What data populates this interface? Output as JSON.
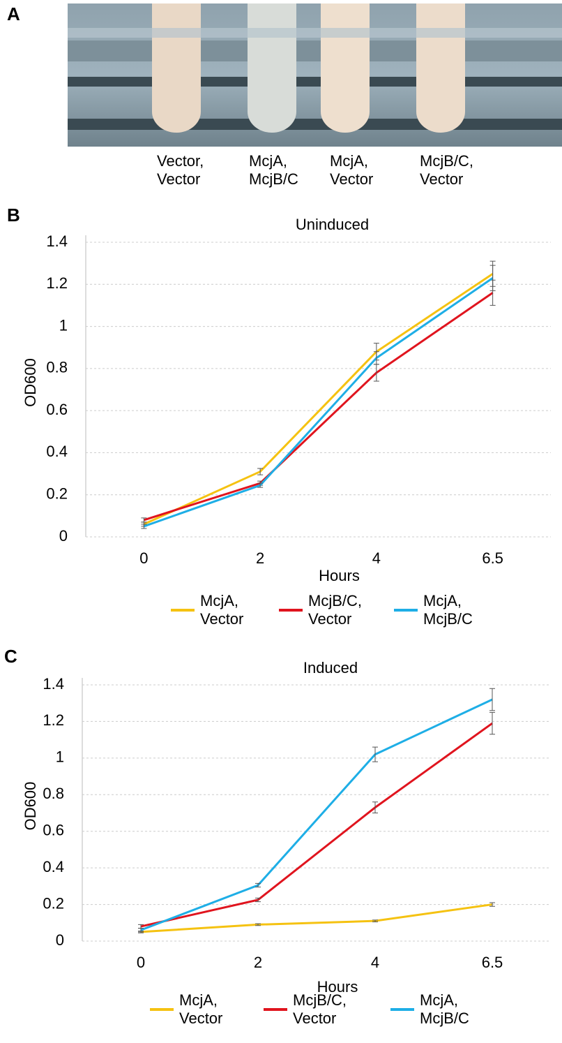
{
  "panel_labels": [
    "A",
    "B",
    "C"
  ],
  "photo": {
    "labels": [
      "Vector, Vector",
      "McjA, McjB/C",
      "McjA, Vector",
      "McjB/C, Vector"
    ]
  },
  "chart_data": [
    {
      "type": "line",
      "title": "Uninduced",
      "x_label": "Hours",
      "y_label": "OD600",
      "categories": [
        "0",
        "2",
        "4",
        "6.5"
      ],
      "ylim": [
        0,
        1.4
      ],
      "yticks": [
        0,
        0.2,
        0.4,
        0.6,
        0.8,
        1,
        1.2,
        1.4
      ],
      "grid": true,
      "series": [
        {
          "name": "McjA, Vector",
          "color": "#f5c211",
          "values": [
            0.06,
            0.31,
            0.88,
            1.25
          ],
          "errors": [
            0.01,
            0.015,
            0.04,
            0.06
          ]
        },
        {
          "name": "McjB/C, Vector",
          "color": "#e0141e",
          "values": [
            0.08,
            0.255,
            0.78,
            1.16
          ],
          "errors": [
            0.01,
            0.01,
            0.04,
            0.06
          ]
        },
        {
          "name": "McjA, McjB/C",
          "color": "#1eaee6",
          "values": [
            0.05,
            0.245,
            0.85,
            1.23
          ],
          "errors": [
            0.01,
            0.01,
            0.03,
            0.06
          ]
        }
      ]
    },
    {
      "type": "line",
      "title": "Induced",
      "x_label": "Hours",
      "y_label": "OD600",
      "categories": [
        "0",
        "2",
        "4",
        "6.5"
      ],
      "ylim": [
        0,
        1.4
      ],
      "yticks": [
        0,
        0.2,
        0.4,
        0.6,
        0.8,
        1,
        1.2,
        1.4
      ],
      "grid": true,
      "series": [
        {
          "name": "McjA, Vector",
          "color": "#f5c211",
          "values": [
            0.05,
            0.09,
            0.11,
            0.2
          ],
          "errors": [
            0.005,
            0.005,
            0.005,
            0.01
          ]
        },
        {
          "name": "McjB/C, Vector",
          "color": "#e0141e",
          "values": [
            0.08,
            0.225,
            0.73,
            1.19
          ],
          "errors": [
            0.01,
            0.01,
            0.03,
            0.06
          ]
        },
        {
          "name": "McjA, McjB/C",
          "color": "#1eaee6",
          "values": [
            0.06,
            0.305,
            1.02,
            1.32
          ],
          "errors": [
            0.01,
            0.01,
            0.04,
            0.06
          ]
        }
      ]
    }
  ]
}
